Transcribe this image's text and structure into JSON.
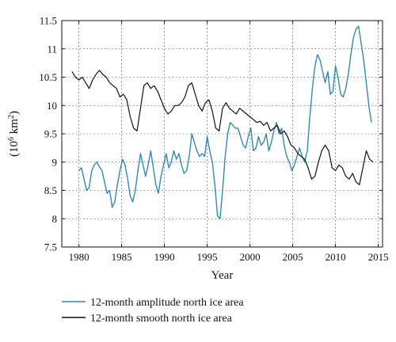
{
  "chart_data": {
    "type": "line",
    "title": "",
    "xlabel": "Year",
    "ylabel": {
      "prefix": "(10",
      "sup1": "6",
      "mid": " km",
      "sup2": "2",
      "suffix": ")"
    },
    "xlim": [
      1978,
      2015.5
    ],
    "ylim": [
      7.5,
      11.5
    ],
    "xticks": [
      1980,
      1985,
      1990,
      1995,
      2000,
      2005,
      2010,
      2015
    ],
    "yticks": [
      7.5,
      8,
      8.5,
      9,
      9.5,
      10,
      10.5,
      11,
      11.5
    ],
    "xtick_labels": [
      "1980",
      "1985",
      "1990",
      "1995",
      "2000",
      "2005",
      "2010",
      "2015"
    ],
    "ytick_labels": [
      "7.5",
      "8",
      "8.5",
      "9",
      "9.5",
      "10",
      "10.5",
      "11",
      "11.5"
    ],
    "grid": true,
    "legend_position": "below",
    "series": [
      {
        "name": "12-month amplitude north ice area",
        "color": "#2f8ab8",
        "x": [
          1980.0,
          1980.3,
          1980.6,
          1980.9,
          1981.2,
          1981.5,
          1981.8,
          1982.1,
          1982.4,
          1982.7,
          1983.0,
          1983.3,
          1983.6,
          1983.9,
          1984.2,
          1984.5,
          1984.8,
          1985.1,
          1985.4,
          1985.7,
          1986.0,
          1986.3,
          1986.6,
          1986.9,
          1987.2,
          1987.5,
          1987.8,
          1988.1,
          1988.4,
          1988.7,
          1989.0,
          1989.3,
          1989.6,
          1989.9,
          1990.2,
          1990.5,
          1990.8,
          1991.1,
          1991.4,
          1991.7,
          1992.0,
          1992.3,
          1992.6,
          1992.9,
          1993.2,
          1993.5,
          1993.8,
          1994.1,
          1994.4,
          1994.7,
          1995.0,
          1995.3,
          1995.6,
          1995.9,
          1996.2,
          1996.5,
          1996.8,
          1997.1,
          1997.4,
          1997.7,
          1998.0,
          1998.3,
          1998.6,
          1998.9,
          1999.2,
          1999.5,
          1999.8,
          2000.1,
          2000.4,
          2000.7,
          2001.0,
          2001.3,
          2001.6,
          2001.9,
          2002.2,
          2002.5,
          2002.8,
          2003.1,
          2003.4,
          2003.7,
          2004.0,
          2004.3,
          2004.6,
          2004.9,
          2005.2,
          2005.5,
          2005.8,
          2006.1,
          2006.4,
          2006.7,
          2007.0,
          2007.3,
          2007.6,
          2007.9,
          2008.2,
          2008.5,
          2008.8,
          2009.1,
          2009.4,
          2009.7,
          2010.0,
          2010.3,
          2010.6,
          2010.9,
          2011.2,
          2011.5,
          2011.8,
          2012.1,
          2012.4,
          2012.7,
          2013.0,
          2013.3,
          2013.6,
          2013.9,
          2014.2
        ],
        "y": [
          8.85,
          8.9,
          8.7,
          8.5,
          8.55,
          8.85,
          8.95,
          9.0,
          8.92,
          8.85,
          8.65,
          8.45,
          8.5,
          8.2,
          8.3,
          8.6,
          8.85,
          9.05,
          8.95,
          8.7,
          8.4,
          8.3,
          8.5,
          8.85,
          9.15,
          8.95,
          8.75,
          8.95,
          9.2,
          8.9,
          8.6,
          8.45,
          8.75,
          8.95,
          9.15,
          8.9,
          9.0,
          9.2,
          9.05,
          9.15,
          8.95,
          8.8,
          8.85,
          9.1,
          9.5,
          9.35,
          9.2,
          9.1,
          9.15,
          9.1,
          9.45,
          9.2,
          9.0,
          8.6,
          8.05,
          8.0,
          8.5,
          9.1,
          9.5,
          9.7,
          9.65,
          9.6,
          9.6,
          9.45,
          9.3,
          9.25,
          9.45,
          9.6,
          9.2,
          9.25,
          9.45,
          9.3,
          9.35,
          9.5,
          9.2,
          9.35,
          9.55,
          9.7,
          9.5,
          9.6,
          9.3,
          9.1,
          9.0,
          8.85,
          8.95,
          9.1,
          9.25,
          9.1,
          9.0,
          9.2,
          9.8,
          10.3,
          10.7,
          10.9,
          10.8,
          10.6,
          10.4,
          10.6,
          10.2,
          10.25,
          10.7,
          10.5,
          10.2,
          10.15,
          10.3,
          10.55,
          10.9,
          11.2,
          11.35,
          11.4,
          11.1,
          10.8,
          10.4,
          10.0,
          9.7
        ],
        "width": 1.4
      },
      {
        "name": "12-month smooth north ice area",
        "color": "#111111",
        "x": [
          1979.2,
          1979.6,
          1980.0,
          1980.4,
          1980.8,
          1981.2,
          1981.6,
          1982.0,
          1982.4,
          1982.8,
          1983.2,
          1983.6,
          1984.0,
          1984.4,
          1984.8,
          1985.2,
          1985.6,
          1986.0,
          1986.4,
          1986.8,
          1987.2,
          1987.6,
          1988.0,
          1988.4,
          1988.8,
          1989.2,
          1989.6,
          1990.0,
          1990.4,
          1990.8,
          1991.2,
          1991.6,
          1992.0,
          1992.4,
          1992.8,
          1993.2,
          1993.6,
          1994.0,
          1994.4,
          1994.8,
          1995.2,
          1995.6,
          1996.0,
          1996.4,
          1996.8,
          1997.2,
          1997.6,
          1998.0,
          1998.4,
          1998.8,
          1999.2,
          1999.6,
          2000.0,
          2000.4,
          2000.8,
          2001.2,
          2001.6,
          2002.0,
          2002.4,
          2002.8,
          2003.2,
          2003.6,
          2004.0,
          2004.4,
          2004.8,
          2005.2,
          2005.6,
          2006.0,
          2006.4,
          2006.8,
          2007.2,
          2007.6,
          2008.0,
          2008.4,
          2008.8,
          2009.2,
          2009.6,
          2010.0,
          2010.4,
          2010.8,
          2011.2,
          2011.6,
          2012.0,
          2012.4,
          2012.8,
          2013.2,
          2013.6,
          2014.0,
          2014.4
        ],
        "y": [
          10.6,
          10.5,
          10.45,
          10.5,
          10.4,
          10.3,
          10.45,
          10.55,
          10.62,
          10.55,
          10.5,
          10.4,
          10.35,
          10.3,
          10.15,
          10.2,
          10.1,
          9.8,
          9.6,
          9.55,
          9.95,
          10.35,
          10.4,
          10.3,
          10.35,
          10.25,
          10.1,
          9.95,
          9.85,
          9.9,
          10.0,
          10.0,
          10.05,
          10.15,
          10.35,
          10.4,
          10.2,
          10.0,
          9.9,
          10.05,
          10.1,
          9.9,
          9.6,
          9.55,
          9.95,
          10.05,
          9.95,
          9.9,
          9.85,
          9.95,
          9.9,
          9.85,
          9.8,
          9.75,
          9.7,
          9.72,
          9.65,
          9.7,
          9.55,
          9.6,
          9.65,
          9.5,
          9.55,
          9.45,
          9.3,
          9.25,
          9.15,
          9.1,
          9.05,
          8.9,
          8.7,
          8.75,
          9.0,
          9.2,
          9.3,
          9.2,
          8.9,
          8.85,
          8.95,
          8.9,
          8.75,
          8.7,
          8.8,
          8.65,
          8.6,
          8.9,
          9.2,
          9.05,
          9.0
        ],
        "width": 1.2
      }
    ]
  }
}
